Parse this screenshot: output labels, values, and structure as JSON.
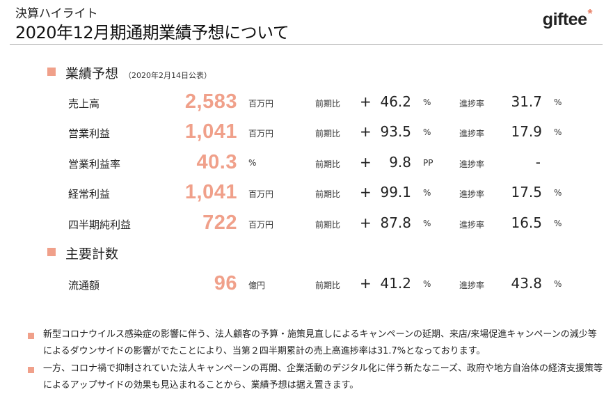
{
  "header": {
    "subtitle": "決算ハイライト",
    "title": "2020年12月期通期業績予想について",
    "logo_text": "giftee",
    "logo_mark": "*"
  },
  "forecast_section": {
    "title": "業績予想",
    "note": "（2020年2月14日公表）",
    "yoy_label": "前期比",
    "progress_label": "進捗率",
    "rows": [
      {
        "label": "売上高",
        "value": "2,583",
        "unit": "百万円",
        "yoy_sign": "+",
        "yoy_value": "46.2",
        "yoy_unit": "%",
        "progress_value": "31.7",
        "progress_unit": "%"
      },
      {
        "label": "営業利益",
        "value": "1,041",
        "unit": "百万円",
        "yoy_sign": "+",
        "yoy_value": "93.5",
        "yoy_unit": "%",
        "progress_value": "17.9",
        "progress_unit": "%"
      },
      {
        "label": "営業利益率",
        "value": "40.3",
        "unit": "%",
        "yoy_sign": "+",
        "yoy_value": "9.8",
        "yoy_unit": "PP",
        "progress_value": "-",
        "progress_unit": ""
      },
      {
        "label": "経常利益",
        "value": "1,041",
        "unit": "百万円",
        "yoy_sign": "+",
        "yoy_value": "99.1",
        "yoy_unit": "%",
        "progress_value": "17.5",
        "progress_unit": "%"
      },
      {
        "label": "四半期純利益",
        "value": "722",
        "unit": "百万円",
        "yoy_sign": "+",
        "yoy_value": "87.8",
        "yoy_unit": "%",
        "progress_value": "16.5",
        "progress_unit": "%"
      }
    ]
  },
  "kpi_section": {
    "title": "主要計数",
    "rows": [
      {
        "label": "流通額",
        "value": "96",
        "unit": "億円",
        "yoy_sign": "+",
        "yoy_value": "41.2",
        "yoy_unit": "%",
        "progress_value": "43.8",
        "progress_unit": "%"
      }
    ]
  },
  "notes": [
    "新型コロナウイルス感染症の影響に伴う、法人顧客の予算・施策見直しによるキャンペーンの延期、来店/来場促進キャンペーンの減少等によるダウンサイドの影響がでたことにより、当第２四半期累計の売上高進捗率は31.7%となっております。",
    "一方、コロナ禍で抑制されていた法人キャンペーンの再開、企業活動のデジタル化に伴う新たなニーズ、政府や地方自治体の経済支援策等によるアップサイドの効果も見込まれることから、業績予想は据え置きます。"
  ],
  "colors": {
    "accent": "#f0a08a",
    "rule": "#a8a8a8"
  }
}
